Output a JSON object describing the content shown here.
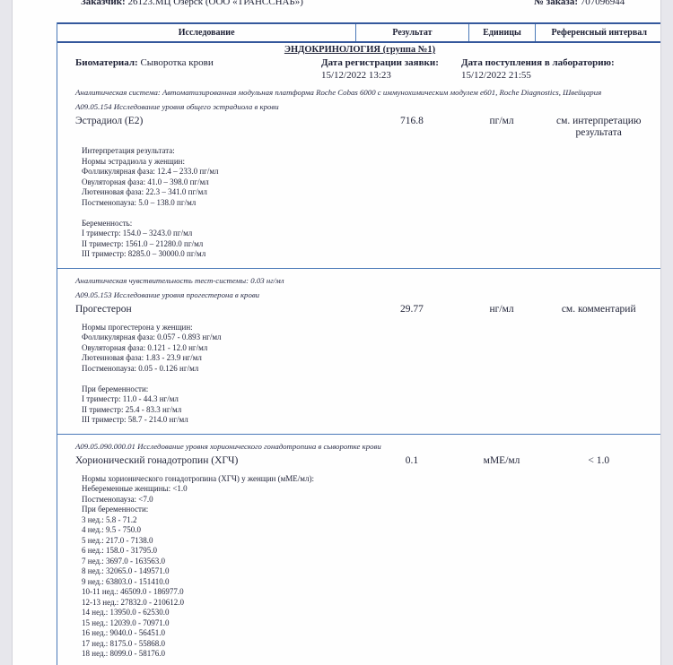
{
  "colors": {
    "table_border": "#4a79b8",
    "header_border": "#35589c",
    "bottom_border": "#2e62b1",
    "text": "#1e2136",
    "gutter_bg": "#e7e7ec"
  },
  "topline": {
    "customer_label": "Заказчик:",
    "customer_value": "26123.МЦ Озерск (ООО «ТРАНССНАБ»)",
    "order_label": "№ заказа:",
    "order_value": "707096944"
  },
  "table": {
    "headers": {
      "investigation": "Исследование",
      "result": "Результат",
      "units": "Единицы",
      "reference": "Референсный интервал"
    },
    "group_title": "ЭНДОКРИНОЛОГИЯ (группа №1)",
    "biomaterial_label": "Биоматериал:",
    "biomaterial_value": "Сыворотка крови",
    "reg_date_label": "Дата регистрации заявки:",
    "reg_date_value": "15/12/2022 13:23",
    "recv_date_label": "Дата поступления в лабораторию:",
    "recv_date_value": "15/12/2022 21:55",
    "analytical_system": "Аналитическая система: Автоматизированная модульная платформа Roche Cobas 6000 с иммунохимическим модулем е601, Roche Diagnostics, Швейцария"
  },
  "sections": [
    {
      "code_line": "А09.05.154 Исследование уровня общего эстрадиола в крови",
      "name": "Эстрадиол (Е2)",
      "result": "716.8",
      "units": "пг/мл",
      "ref": "см. интерпретацию результата",
      "norm_lines": [
        "Интерпретация результата:",
        "Нормы эстрадиола у женщин:",
        "Фолликулярная фаза: 12.4 – 233.0 пг/мл",
        "Овуляторная фаза: 41.0 – 398.0 пг/мл",
        "Лютеиновая фаза: 22.3 – 341.0 пг/мл",
        "Постменопауза: 5.0 – 138.0 пг/мл",
        "",
        "Беременность:",
        "I триместр: 154.0 – 3243.0 пг/мл",
        "II триместр: 1561.0 – 21280.0 пг/мл",
        "III триместр: 8285.0 – 30000.0 пг/мл"
      ]
    },
    {
      "pre_line": "Аналитическая чувствительность тест-системы: 0.03 нг/мл",
      "code_line": "А09.05.153 Исследование уровня прогестерона в крови",
      "name": "Прогестерон",
      "result": "29.77",
      "units": "нг/мл",
      "ref": "см. комментарий",
      "norm_lines": [
        "Нормы прогестерона у женщин:",
        "Фолликулярная фаза: 0.057 - 0.893 нг/мл",
        "Овуляторная фаза: 0.121 - 12.0 нг/мл",
        "Лютеиновая фаза: 1.83 - 23.9 нг/мл",
        "Постменопауза: 0.05 - 0.126 нг/мл",
        "",
        "При беременности:",
        "I триместр: 11.0 - 44.3 нг/мл",
        "II триместр: 25.4 - 83.3 нг/мл",
        "III триместр: 58.7 - 214.0 нг/мл"
      ]
    },
    {
      "code_line": "А09.05.090.000.01  Исследование уровня хорионического гонадотропина в сыворотке крови",
      "name": "Хорионический гонадотропин (ХГЧ)",
      "result": "0.1",
      "units": "мМЕ/мл",
      "ref": "< 1.0",
      "norm_lines": [
        "Нормы хорионического гонадотропина (ХГЧ) у женщин (мМЕ/мл):",
        "Небеременные женщины: <1.0",
        "Постменопауза: <7.0",
        "При беременности:",
        "3 нед.: 5.8 - 71.2",
        "4 нед.: 9.5 - 750.0",
        "5 нед.: 217.0 - 7138.0",
        "6 нед.: 158.0 - 31795.0",
        "7 нед.: 3697.0 - 163563.0",
        "8 нед.: 32065.0 - 149571.0",
        "9 нед.: 63803.0 - 151410.0",
        "10-11 нед.: 46509.0 - 186977.0",
        "12-13 нед.: 27832.0 - 210612.0",
        "14 нед.: 13950.0 - 62530.0",
        "15 нед.: 12039.0 - 70971.0",
        "16 нед.: 9040.0 - 56451.0",
        "17 нед.: 8175.0 - 55868.0",
        "18 нед.: 8099.0 - 58176.0"
      ]
    }
  ]
}
